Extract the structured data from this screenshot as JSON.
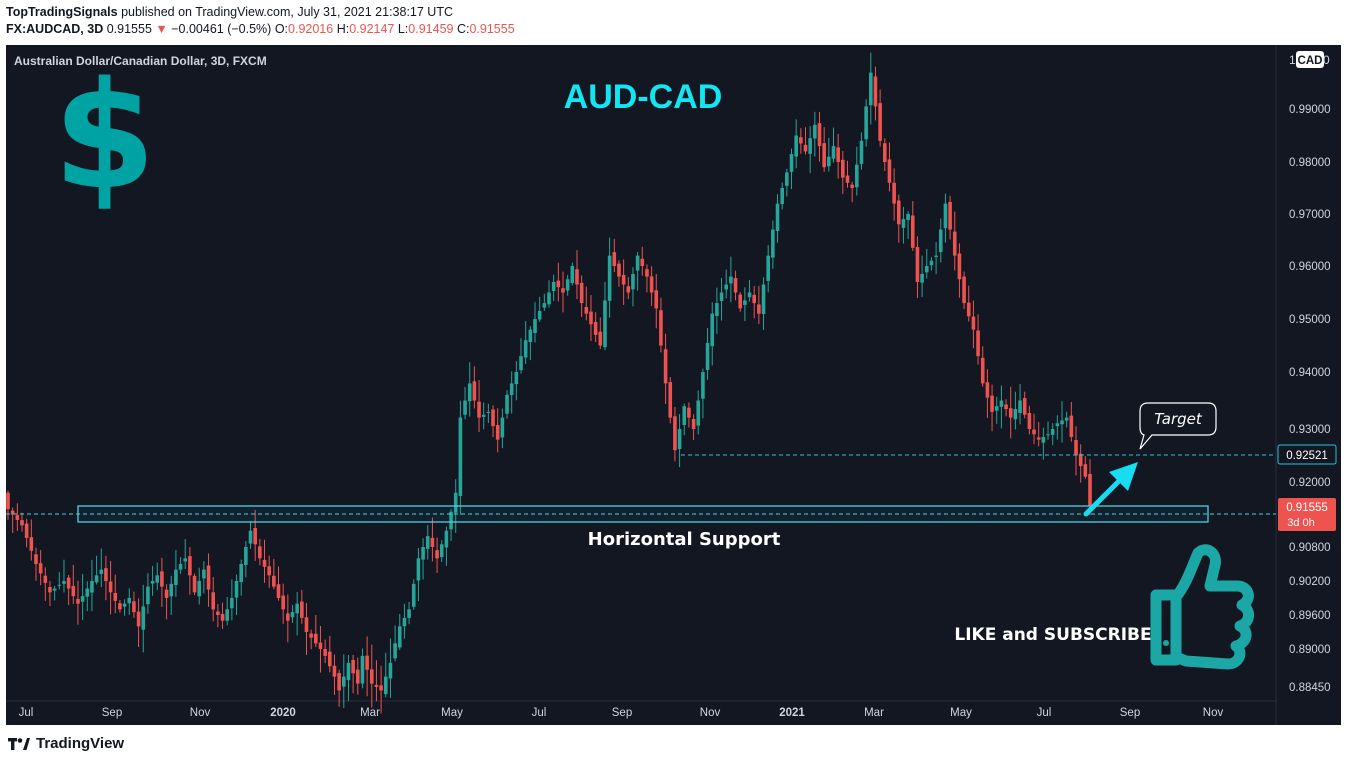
{
  "header": {
    "publisher": "TopTradingSignals",
    "published_text": "published on TradingView.com, July 31, 2021 21:38:17 UTC",
    "symbol": "FX:AUDCAD, 3D",
    "last": "0.91555",
    "change_arrow": "▼",
    "change": "−0.00461 (−0.5%)",
    "o_label": "O:",
    "o": "0.92016",
    "h_label": "H:",
    "h": "0.92147",
    "l_label": "L:",
    "l": "0.91459",
    "c_label": "C:",
    "c": "0.91555"
  },
  "chart_data": {
    "type": "candlestick",
    "title": "AUD-CAD",
    "subtitle": "Australian Dollar/Canadian Dollar, 3D, FXCM",
    "currency": "CAD",
    "currency_left": "1",
    "currency_right": "0",
    "y_ticks": [
      "0.99000",
      "0.98000",
      "0.97000",
      "0.96000",
      "0.95000",
      "0.94000",
      "0.93000",
      "0.92000",
      "0.90800",
      "0.90200",
      "0.89600",
      "0.89000",
      "0.88450"
    ],
    "x_ticks": [
      "Jul",
      "Sep",
      "Nov",
      "2020",
      "Mar",
      "May",
      "Jul",
      "Sep",
      "Nov",
      "2021",
      "Mar",
      "May",
      "Jul",
      "Sep",
      "Nov"
    ],
    "last_price": "0.91555",
    "countdown": "3d 0h",
    "target_price": "0.92521",
    "support_label": "Horizontal Support",
    "target_label": "Target",
    "cta_label": "LIKE and SUBSCRIBE",
    "support_zone": [
      0.9107,
      0.9137
    ],
    "path": [
      [
        0,
        0.915
      ],
      [
        3,
        0.912
      ],
      [
        6,
        0.905
      ],
      [
        9,
        0.9
      ],
      [
        12,
        0.902
      ],
      [
        15,
        0.898
      ],
      [
        18,
        0.902
      ],
      [
        20,
        0.904
      ],
      [
        22,
        0.9
      ],
      [
        24,
        0.897
      ],
      [
        26,
        0.899
      ],
      [
        28,
        0.894
      ],
      [
        30,
        0.901
      ],
      [
        32,
        0.903
      ],
      [
        34,
        0.899
      ],
      [
        36,
        0.904
      ],
      [
        38,
        0.906
      ],
      [
        40,
        0.9
      ],
      [
        42,
        0.904
      ],
      [
        44,
        0.897
      ],
      [
        46,
        0.895
      ],
      [
        48,
        0.899
      ],
      [
        50,
        0.905
      ],
      [
        52,
        0.911
      ],
      [
        54,
        0.906
      ],
      [
        56,
        0.903
      ],
      [
        58,
        0.899
      ],
      [
        60,
        0.895
      ],
      [
        62,
        0.898
      ],
      [
        64,
        0.893
      ],
      [
        66,
        0.891
      ],
      [
        68,
        0.889
      ],
      [
        70,
        0.886
      ],
      [
        71,
        0.884
      ],
      [
        73,
        0.888
      ],
      [
        75,
        0.885
      ],
      [
        76,
        0.889
      ],
      [
        78,
        0.885
      ],
      [
        80,
        0.884
      ],
      [
        82,
        0.888
      ],
      [
        84,
        0.894
      ],
      [
        86,
        0.897
      ],
      [
        88,
        0.906
      ],
      [
        90,
        0.91
      ],
      [
        92,
        0.906
      ],
      [
        94,
        0.911
      ],
      [
        96,
        0.918
      ],
      [
        97,
        0.932
      ],
      [
        99,
        0.938
      ],
      [
        101,
        0.932
      ],
      [
        103,
        0.933
      ],
      [
        105,
        0.928
      ],
      [
        107,
        0.936
      ],
      [
        109,
        0.94
      ],
      [
        111,
        0.946
      ],
      [
        113,
        0.95
      ],
      [
        115,
        0.953
      ],
      [
        117,
        0.957
      ],
      [
        119,
        0.955
      ],
      [
        121,
        0.96
      ],
      [
        123,
        0.953
      ],
      [
        125,
        0.949
      ],
      [
        127,
        0.945
      ],
      [
        129,
        0.962
      ],
      [
        131,
        0.958
      ],
      [
        133,
        0.955
      ],
      [
        135,
        0.962
      ],
      [
        137,
        0.958
      ],
      [
        139,
        0.952
      ],
      [
        141,
        0.938
      ],
      [
        143,
        0.926
      ],
      [
        145,
        0.934
      ],
      [
        147,
        0.93
      ],
      [
        149,
        0.94
      ],
      [
        151,
        0.951
      ],
      [
        153,
        0.955
      ],
      [
        155,
        0.958
      ],
      [
        157,
        0.952
      ],
      [
        159,
        0.955
      ],
      [
        161,
        0.951
      ],
      [
        163,
        0.962
      ],
      [
        165,
        0.972
      ],
      [
        167,
        0.978
      ],
      [
        169,
        0.985
      ],
      [
        171,
        0.982
      ],
      [
        173,
        0.987
      ],
      [
        175,
        0.979
      ],
      [
        177,
        0.983
      ],
      [
        179,
        0.977
      ],
      [
        181,
        0.975
      ],
      [
        183,
        0.984
      ],
      [
        185,
        0.997
      ],
      [
        187,
        0.984
      ],
      [
        189,
        0.976
      ],
      [
        191,
        0.968
      ],
      [
        193,
        0.97
      ],
      [
        195,
        0.957
      ],
      [
        197,
        0.96
      ],
      [
        199,
        0.962
      ],
      [
        201,
        0.972
      ],
      [
        203,
        0.962
      ],
      [
        205,
        0.953
      ],
      [
        207,
        0.948
      ],
      [
        209,
        0.938
      ],
      [
        211,
        0.933
      ],
      [
        213,
        0.935
      ],
      [
        215,
        0.932
      ],
      [
        217,
        0.935
      ],
      [
        219,
        0.93
      ],
      [
        221,
        0.928
      ],
      [
        223,
        0.929
      ],
      [
        225,
        0.931
      ],
      [
        227,
        0.932
      ],
      [
        229,
        0.925
      ],
      [
        231,
        0.921
      ],
      [
        232,
        0.9155
      ]
    ]
  }
}
